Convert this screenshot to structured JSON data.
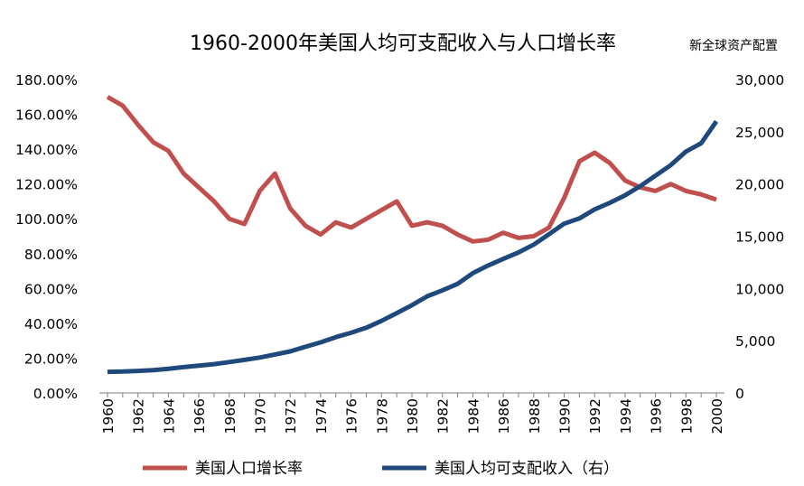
{
  "chart_data": {
    "type": "line",
    "title": "1960-2000年美国人均可支配收入与人口增长率",
    "watermark": "新全球资产配置",
    "x": [
      "1960",
      "1961",
      "1962",
      "1963",
      "1964",
      "1965",
      "1966",
      "1967",
      "1968",
      "1969",
      "1970",
      "1971",
      "1972",
      "1973",
      "1974",
      "1975",
      "1976",
      "1977",
      "1978",
      "1979",
      "1980",
      "1981",
      "1982",
      "1983",
      "1984",
      "1985",
      "1986",
      "1987",
      "1988",
      "1989",
      "1990",
      "1991",
      "1992",
      "1993",
      "1994",
      "1995",
      "1996",
      "1997",
      "1998",
      "1999",
      "2000"
    ],
    "x_tick_labels": [
      "1960",
      "1962",
      "1964",
      "1966",
      "1968",
      "1970",
      "1972",
      "1974",
      "1976",
      "1978",
      "1980",
      "1982",
      "1984",
      "1986",
      "1988",
      "1990",
      "1992",
      "1994",
      "1996",
      "1998",
      "2000"
    ],
    "y_left_ticks": [
      "0.00%",
      "20.00%",
      "40.00%",
      "60.00%",
      "80.00%",
      "100.00%",
      "120.00%",
      "140.00%",
      "160.00%",
      "180.00%"
    ],
    "y_right_ticks": [
      "0",
      "5,000",
      "10,000",
      "15,000",
      "20,000",
      "25,000",
      "30,000"
    ],
    "ylim_left": [
      0,
      1.8
    ],
    "ylim_right": [
      0,
      30000
    ],
    "series": [
      {
        "name": "美国人口增长率",
        "axis": "left",
        "color": "#c0504d",
        "values": [
          1.7,
          1.65,
          1.54,
          1.44,
          1.39,
          1.26,
          1.18,
          1.1,
          1.0,
          0.97,
          1.16,
          1.26,
          1.06,
          0.96,
          0.91,
          0.98,
          0.95,
          1.0,
          1.05,
          1.1,
          0.96,
          0.98,
          0.96,
          0.91,
          0.87,
          0.88,
          0.92,
          0.89,
          0.9,
          0.95,
          1.12,
          1.33,
          1.38,
          1.32,
          1.22,
          1.18,
          1.16,
          1.2,
          1.16,
          1.14,
          1.11
        ]
      },
      {
        "name": "美国人均可支配收入（右）",
        "axis": "right",
        "color": "#1f497d",
        "values": [
          2020,
          2050,
          2110,
          2180,
          2320,
          2470,
          2610,
          2760,
          2960,
          3160,
          3390,
          3680,
          3980,
          4420,
          4840,
          5340,
          5760,
          6240,
          6900,
          7640,
          8400,
          9250,
          9820,
          10440,
          11460,
          12200,
          12830,
          13450,
          14200,
          15190,
          16200,
          16700,
          17570,
          18200,
          18920,
          19800,
          20800,
          21800,
          23100,
          23900,
          26000
        ]
      }
    ]
  }
}
